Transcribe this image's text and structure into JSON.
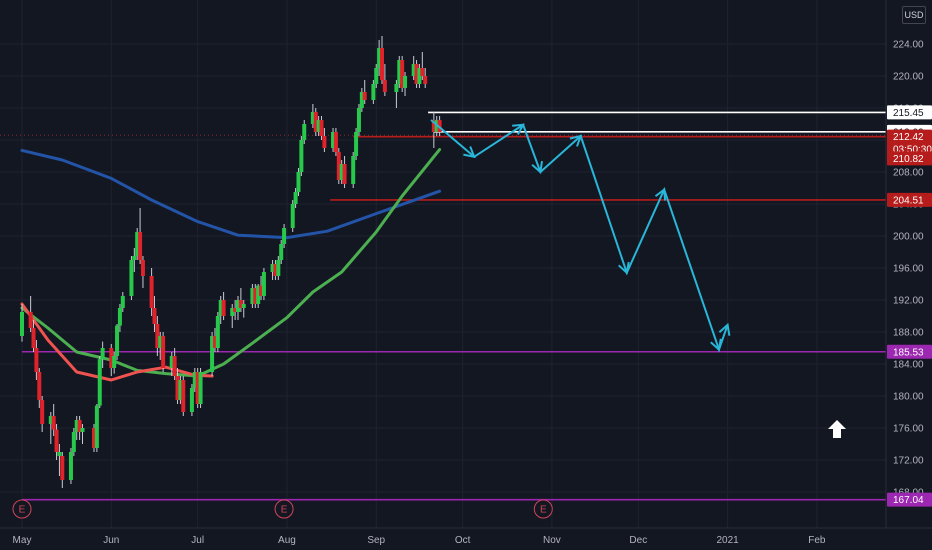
{
  "currency_label": "USD",
  "colors": {
    "background": "#131722",
    "grid": "#1f2330",
    "up": "#26c94a",
    "down": "#e0222b",
    "ma_fast": "#4caf50",
    "ma_slow": "#2354a7",
    "ma_red": "#ef5350",
    "projection": "#29b6d8",
    "white_line": "#ffffff",
    "red_line": "#b71c1c",
    "purple_line": "#9c27b0"
  },
  "chart_data": {
    "type": "candlestick",
    "title": "",
    "xlabel": "",
    "ylabel": "",
    "ylim": [
      167.04,
      227.5
    ],
    "xlim_dates": [
      "2020-05-01",
      "2021-02-25"
    ],
    "y_ticks": [
      "224.00",
      "220.00",
      "216.00",
      "212.00",
      "208.00",
      "204.00",
      "200.00",
      "196.00",
      "192.00",
      "188.00",
      "184.00",
      "180.00",
      "176.00",
      "172.00",
      "168.00"
    ],
    "x_ticks": [
      {
        "label": "May",
        "date": "2020-05-01"
      },
      {
        "label": "Jun",
        "date": "2020-06-01"
      },
      {
        "label": "Jul",
        "date": "2020-07-01"
      },
      {
        "label": "Aug",
        "date": "2020-08-01"
      },
      {
        "label": "Sep",
        "date": "2020-09-01"
      },
      {
        "label": "Oct",
        "date": "2020-10-01"
      },
      {
        "label": "Nov",
        "date": "2020-11-01"
      },
      {
        "label": "Dec",
        "date": "2020-12-01"
      },
      {
        "label": "2021",
        "date": "2021-01-01"
      },
      {
        "label": "Feb",
        "date": "2021-02-01"
      }
    ],
    "price_tags": [
      {
        "label": "215.45",
        "value": 215.45,
        "style": "white"
      },
      {
        "label": "213.02",
        "value": 213.02,
        "style": "white"
      },
      {
        "label": "212.42",
        "value": 212.42,
        "style": "red"
      },
      {
        "label": "03:50:30",
        "value": 210.9,
        "style": "red"
      },
      {
        "label": "210.82",
        "value": 209.7,
        "style": "red"
      },
      {
        "label": "204.51",
        "value": 204.51,
        "style": "red"
      },
      {
        "label": "185.53",
        "value": 185.53,
        "style": "purple"
      },
      {
        "label": "167.04",
        "value": 167.04,
        "style": "purple"
      }
    ],
    "horizontal_lines": [
      {
        "value": 215.45,
        "start": "2020-09-19",
        "style": "white"
      },
      {
        "value": 213.02,
        "start": "2020-09-21",
        "style": "white"
      },
      {
        "value": 212.42,
        "start": "2020-08-24",
        "style": "red"
      },
      {
        "value": 204.51,
        "start": "2020-08-16",
        "style": "red"
      },
      {
        "value": 185.53,
        "start": "2020-05-01",
        "style": "purple"
      },
      {
        "value": 167.04,
        "start": "2020-05-01",
        "style": "purple"
      }
    ],
    "earnings_markers": [
      {
        "label": "E",
        "date": "2020-05-01"
      },
      {
        "label": "E",
        "date": "2020-07-31"
      },
      {
        "label": "E",
        "date": "2020-10-29"
      }
    ],
    "candles_ohlc_up": [
      [
        "2020-05-01",
        187.5,
        191.5,
        186.8,
        190.5,
        0
      ],
      [
        "2020-05-04",
        190.5,
        192.5,
        188,
        188.5,
        1
      ],
      [
        "2020-05-05",
        188.5,
        189.5,
        185.5,
        186,
        1
      ],
      [
        "2020-05-06",
        186,
        187,
        182,
        183,
        1
      ],
      [
        "2020-05-07",
        183,
        183.5,
        178.5,
        179.5,
        1
      ],
      [
        "2020-05-08",
        179.5,
        180,
        175.5,
        176.5,
        1
      ],
      [
        "2020-05-11",
        176.5,
        178,
        174,
        177.5,
        0
      ],
      [
        "2020-05-12",
        177.5,
        179,
        175,
        175.8,
        1
      ],
      [
        "2020-05-13",
        175.8,
        176.5,
        172,
        173,
        1
      ],
      [
        "2020-05-14",
        173,
        174,
        170,
        172.5,
        0
      ],
      [
        "2020-05-15",
        172.5,
        173,
        168.5,
        169.5,
        1
      ],
      [
        "2020-05-18",
        169.5,
        173.5,
        169,
        173,
        0
      ],
      [
        "2020-05-19",
        173,
        176,
        172.5,
        175.5,
        0
      ],
      [
        "2020-05-20",
        175.5,
        177.5,
        174.5,
        177,
        0
      ],
      [
        "2020-05-21",
        177,
        177.5,
        174.5,
        175.5,
        1
      ],
      [
        "2020-05-22",
        175.5,
        176.5,
        174,
        176,
        0
      ],
      [
        "2020-05-26",
        176,
        176.5,
        173,
        173.5,
        1
      ],
      [
        "2020-05-27",
        173.5,
        179,
        173,
        178.8,
        0
      ],
      [
        "2020-05-28",
        178.8,
        185,
        178.5,
        184.6,
        0
      ],
      [
        "2020-05-29",
        184.6,
        186.8,
        183.5,
        186,
        0
      ],
      [
        "2020-06-01",
        186,
        186.5,
        182.5,
        183.5,
        1
      ],
      [
        "2020-06-02",
        183.5,
        185.5,
        182.8,
        185,
        0
      ],
      [
        "2020-06-03",
        185,
        189,
        184.5,
        188.8,
        0
      ],
      [
        "2020-06-04",
        188.8,
        191.5,
        188,
        191,
        0
      ],
      [
        "2020-06-05",
        191,
        193,
        190.5,
        192.5,
        0
      ],
      [
        "2020-06-08",
        192.5,
        197.5,
        192,
        197,
        0
      ],
      [
        "2020-06-09",
        197,
        198.5,
        195.5,
        197.5,
        0
      ],
      [
        "2020-06-10",
        197.5,
        201,
        197,
        200.5,
        0
      ],
      [
        "2020-06-11",
        200.5,
        203.5,
        196.5,
        197,
        1
      ],
      [
        "2020-06-12",
        197,
        197.5,
        193.5,
        195,
        1
      ],
      [
        "2020-06-15",
        195,
        196,
        190,
        191,
        1
      ],
      [
        "2020-06-16",
        191,
        192.5,
        188,
        189,
        1
      ],
      [
        "2020-06-17",
        189,
        190,
        185,
        186,
        1
      ],
      [
        "2020-06-18",
        186,
        188,
        184.5,
        187.5,
        0
      ],
      [
        "2020-06-19",
        187.5,
        188,
        183,
        183.5,
        1
      ],
      [
        "2020-06-22",
        183.5,
        185.5,
        182.5,
        185,
        0
      ],
      [
        "2020-06-23",
        185,
        186,
        182,
        182.5,
        1
      ],
      [
        "2020-06-24",
        182.5,
        183.5,
        179,
        179.5,
        1
      ],
      [
        "2020-06-25",
        179.5,
        182.5,
        179,
        182,
        0
      ],
      [
        "2020-06-26",
        182,
        182.5,
        177.5,
        178,
        1
      ],
      [
        "2020-06-29",
        178,
        181.5,
        177.5,
        181,
        0
      ],
      [
        "2020-06-30",
        181,
        183.5,
        180.5,
        183,
        0
      ],
      [
        "2020-07-01",
        183,
        183.5,
        178.5,
        179,
        1
      ],
      [
        "2020-07-02",
        179,
        183.5,
        178.5,
        183,
        0
      ],
      [
        "2020-07-06",
        183,
        188,
        182.5,
        187.5,
        0
      ],
      [
        "2020-07-07",
        187.5,
        188.5,
        185.5,
        186,
        1
      ],
      [
        "2020-07-08",
        186,
        190.5,
        185.5,
        190,
        0
      ],
      [
        "2020-07-09",
        190,
        192.5,
        189,
        192,
        0
      ],
      [
        "2020-07-10",
        192,
        193,
        189.5,
        190,
        1
      ],
      [
        "2020-07-13",
        190,
        191.5,
        188.5,
        191,
        0
      ],
      [
        "2020-07-14",
        191,
        192,
        189.5,
        190.5,
        1
      ],
      [
        "2020-07-15",
        190.5,
        192.5,
        189.5,
        192,
        0
      ],
      [
        "2020-07-16",
        192,
        193.5,
        190.5,
        191,
        1
      ],
      [
        "2020-07-17",
        191,
        192,
        189.8,
        191.5,
        0
      ],
      [
        "2020-07-20",
        191.5,
        194,
        191,
        193.5,
        0
      ],
      [
        "2020-07-21",
        193.5,
        194,
        191,
        191.5,
        1
      ],
      [
        "2020-07-22",
        191.5,
        194,
        191,
        193.8,
        0
      ],
      [
        "2020-07-23",
        193.8,
        195,
        192,
        192.5,
        1
      ],
      [
        "2020-07-24",
        192.5,
        196,
        192,
        195.5,
        0
      ],
      [
        "2020-07-27",
        195.5,
        197,
        194.5,
        196.5,
        0
      ],
      [
        "2020-07-28",
        196.5,
        197,
        194.5,
        195,
        1
      ],
      [
        "2020-07-29",
        195,
        197.5,
        194.5,
        197,
        0
      ],
      [
        "2020-07-30",
        197,
        199.5,
        196.5,
        199,
        0
      ],
      [
        "2020-07-31",
        199,
        201.5,
        198.5,
        201,
        0
      ],
      [
        "2020-08-03",
        201,
        204.5,
        200.5,
        204,
        0
      ],
      [
        "2020-08-04",
        204,
        206,
        203.5,
        205.5,
        0
      ],
      [
        "2020-08-05",
        205.5,
        208.5,
        205,
        208,
        0
      ],
      [
        "2020-08-06",
        208,
        212.5,
        207.5,
        212,
        0
      ],
      [
        "2020-08-07",
        212,
        214.5,
        211.5,
        214,
        0
      ],
      [
        "2020-08-10",
        214,
        216.5,
        213.5,
        215.5,
        0
      ],
      [
        "2020-08-11",
        215.5,
        216,
        212.5,
        213,
        1
      ],
      [
        "2020-08-12",
        213,
        215,
        212.5,
        214.5,
        0
      ],
      [
        "2020-08-13",
        214.5,
        215,
        212,
        212.5,
        1
      ],
      [
        "2020-08-14",
        212.5,
        213.5,
        210.5,
        211,
        1
      ],
      [
        "2020-08-17",
        211,
        213.5,
        210.5,
        213,
        0
      ],
      [
        "2020-08-18",
        213,
        213.5,
        210,
        210.5,
        1
      ],
      [
        "2020-08-19",
        210.5,
        211,
        206.5,
        207,
        1
      ],
      [
        "2020-08-20",
        207,
        209.5,
        206.5,
        209,
        0
      ],
      [
        "2020-08-21",
        209,
        210,
        206,
        206.5,
        1
      ],
      [
        "2020-08-24",
        206.5,
        210.5,
        206,
        210,
        0
      ],
      [
        "2020-08-25",
        210,
        213.5,
        209.5,
        213,
        0
      ],
      [
        "2020-08-26",
        213,
        216.5,
        212.5,
        216,
        0
      ],
      [
        "2020-08-27",
        216,
        218.5,
        215.5,
        218,
        0
      ],
      [
        "2020-08-28",
        218,
        219.5,
        216.5,
        217,
        1
      ],
      [
        "2020-08-31",
        217,
        219.5,
        216.5,
        219,
        0
      ],
      [
        "2020-09-01",
        219,
        221.5,
        218.5,
        221,
        0
      ],
      [
        "2020-09-02",
        221,
        224.5,
        220,
        223.5,
        0
      ],
      [
        "2020-09-03",
        223.5,
        225,
        219,
        219.5,
        1
      ],
      [
        "2020-09-04",
        219.5,
        221.5,
        217.5,
        218,
        1
      ],
      [
        "2020-09-08",
        218,
        219.5,
        216,
        219,
        0
      ],
      [
        "2020-09-09",
        219,
        222.5,
        218.5,
        222,
        0
      ],
      [
        "2020-09-10",
        222,
        222.5,
        218,
        218.5,
        1
      ],
      [
        "2020-09-11",
        218.5,
        220.5,
        217.5,
        220,
        0
      ],
      [
        "2020-09-14",
        220,
        222.5,
        219.5,
        221.5,
        0
      ],
      [
        "2020-09-15",
        221.5,
        222,
        218.5,
        219,
        1
      ],
      [
        "2020-09-16",
        219,
        221.5,
        218.5,
        221,
        0
      ],
      [
        "2020-09-17",
        221,
        223,
        219.5,
        220,
        1
      ],
      [
        "2020-09-18",
        220,
        221,
        218.5,
        219,
        1
      ],
      [
        "2020-09-21",
        214.5,
        215.5,
        211,
        213,
        1
      ],
      [
        "2020-09-22",
        213,
        215,
        212.5,
        214.5,
        0
      ],
      [
        "2020-09-23",
        214.5,
        215,
        212.5,
        213,
        1
      ]
    ],
    "series": [
      {
        "values": [
          [
            "2020-05-01",
            210.7
          ],
          [
            "2020-05-15",
            209.5
          ],
          [
            "2020-06-01",
            207.2
          ],
          [
            "2020-06-15",
            204.5
          ],
          [
            "2020-07-01",
            201.8
          ],
          [
            "2020-07-15",
            200.1
          ],
          [
            "2020-08-01",
            199.8
          ],
          [
            "2020-08-15",
            200.6
          ],
          [
            "2020-09-01",
            202.8
          ],
          [
            "2020-09-23",
            205.6
          ]
        ],
        "color": "#2354a7"
      },
      {
        "values": [
          [
            "2020-05-01",
            191
          ],
          [
            "2020-05-10",
            188.5
          ],
          [
            "2020-05-20",
            185.5
          ],
          [
            "2020-06-01",
            184.5
          ],
          [
            "2020-06-10",
            183.2
          ],
          [
            "2020-06-20",
            182.8
          ],
          [
            "2020-07-01",
            182.5
          ],
          [
            "2020-07-10",
            184
          ],
          [
            "2020-07-20",
            186.6
          ],
          [
            "2020-08-01",
            189.8
          ],
          [
            "2020-08-10",
            193
          ],
          [
            "2020-08-20",
            195.5
          ],
          [
            "2020-09-01",
            200.5
          ],
          [
            "2020-09-10",
            205
          ],
          [
            "2020-09-23",
            210.8
          ]
        ],
        "color": "#4caf50"
      },
      {
        "values": [
          [
            "2020-05-01",
            191.5
          ],
          [
            "2020-05-10",
            187
          ],
          [
            "2020-05-20",
            183
          ],
          [
            "2020-06-01",
            182
          ],
          [
            "2020-06-10",
            183
          ],
          [
            "2020-06-20",
            183.6
          ],
          [
            "2020-06-30",
            182.6
          ],
          [
            "2020-07-06",
            182.5
          ]
        ],
        "color": "#ef5350"
      }
    ],
    "projection_path": [
      [
        "2020-09-20",
        214.5
      ],
      [
        "2020-10-05",
        209.9
      ],
      [
        "2020-10-22",
        213.9
      ],
      [
        "2020-10-28",
        208
      ],
      [
        "2020-11-11",
        212.5
      ],
      [
        "2020-11-27",
        195.4
      ],
      [
        "2020-12-10",
        205.8
      ],
      [
        "2020-12-29",
        185.8
      ],
      [
        "2021-01-01",
        188.9
      ]
    ],
    "legend": "none",
    "grid": true
  }
}
